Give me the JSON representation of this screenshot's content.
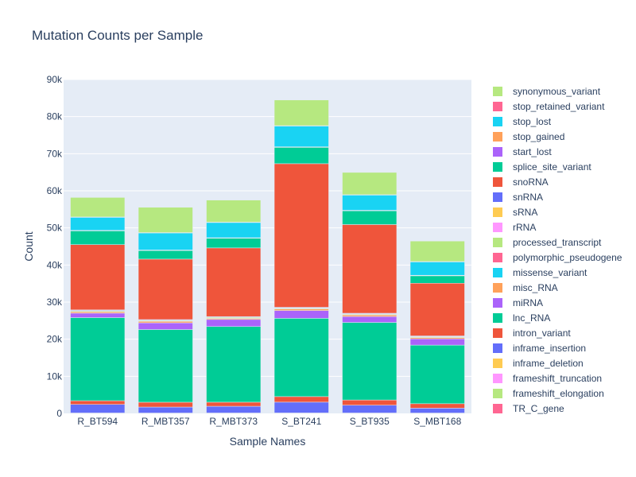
{
  "chart_data": {
    "type": "bar",
    "stacked": true,
    "title": "Mutation Counts per Sample",
    "xlabel": "Sample Names",
    "ylabel": "Count",
    "ylim": [
      0,
      90000
    ],
    "yticks": [
      0,
      10000,
      20000,
      30000,
      40000,
      50000,
      60000,
      70000,
      80000,
      90000
    ],
    "ytick_labels": [
      "0",
      "10k",
      "20k",
      "30k",
      "40k",
      "50k",
      "60k",
      "70k",
      "80k",
      "90k"
    ],
    "grid": true,
    "legend_position": "right",
    "categories": [
      "R_BT594",
      "R_MBT357",
      "R_MBT373",
      "S_BT241",
      "S_BT935",
      "S_MBT168"
    ],
    "series": [
      {
        "name": "TR_C_gene",
        "color": "#FF6692",
        "values": [
          30,
          30,
          30,
          30,
          30,
          30
        ]
      },
      {
        "name": "frameshift_elongation",
        "color": "#B6E880",
        "values": [
          20,
          20,
          20,
          20,
          20,
          20
        ]
      },
      {
        "name": "frameshift_truncation",
        "color": "#FF97FF",
        "values": [
          20,
          20,
          20,
          20,
          20,
          20
        ]
      },
      {
        "name": "inframe_deletion",
        "color": "#FECB52",
        "values": [
          50,
          40,
          50,
          60,
          50,
          40
        ]
      },
      {
        "name": "inframe_insertion",
        "color": "#636EFA",
        "values": [
          2300,
          1600,
          1800,
          2900,
          2100,
          1300
        ]
      },
      {
        "name": "intron_variant",
        "color": "#EF553B",
        "values": [
          1000,
          1300,
          1100,
          1500,
          1400,
          1200
        ]
      },
      {
        "name": "lnc_RNA",
        "color": "#00CC96",
        "values": [
          22400,
          19600,
          20400,
          21100,
          20900,
          15800
        ]
      },
      {
        "name": "miRNA",
        "color": "#AB63FA",
        "values": [
          1200,
          1800,
          1900,
          2100,
          1600,
          1700
        ]
      },
      {
        "name": "misc_RNA",
        "color": "#FFA15A",
        "values": [
          400,
          400,
          300,
          400,
          400,
          300
        ]
      },
      {
        "name": "missense_variant",
        "color": "#19D3F3",
        "values": [
          40,
          40,
          40,
          40,
          40,
          40
        ]
      },
      {
        "name": "polymorphic_pseudogene",
        "color": "#FF6692",
        "values": [
          20,
          20,
          20,
          20,
          20,
          20
        ]
      },
      {
        "name": "processed_transcript",
        "color": "#B6E880",
        "values": [
          200,
          200,
          200,
          200,
          200,
          200
        ]
      },
      {
        "name": "rRNA",
        "color": "#FF97FF",
        "values": [
          40,
          40,
          40,
          40,
          40,
          40
        ]
      },
      {
        "name": "sRNA",
        "color": "#FECB52",
        "values": [
          30,
          30,
          30,
          30,
          30,
          30
        ]
      },
      {
        "name": "snRNA",
        "color": "#636EFA",
        "values": [
          150,
          150,
          150,
          150,
          150,
          150
        ]
      },
      {
        "name": "snoRNA",
        "color": "#EF553B",
        "values": [
          17600,
          16300,
          18500,
          38700,
          23900,
          14200
        ]
      },
      {
        "name": "splice_site_variant",
        "color": "#00CC96",
        "values": [
          3700,
          2300,
          2600,
          4400,
          3700,
          2000
        ]
      },
      {
        "name": "start_lost",
        "color": "#AB63FA",
        "values": [
          50,
          50,
          50,
          50,
          50,
          50
        ]
      },
      {
        "name": "stop_gained",
        "color": "#FFA15A",
        "values": [
          100,
          100,
          100,
          100,
          100,
          100
        ]
      },
      {
        "name": "stop_lost",
        "color": "#19D3F3",
        "values": [
          3500,
          4600,
          4100,
          5600,
          4100,
          3600
        ]
      },
      {
        "name": "stop_retained_variant",
        "color": "#FF6692",
        "values": [
          100,
          100,
          100,
          100,
          100,
          100
        ]
      },
      {
        "name": "synonymous_variant",
        "color": "#B6E880",
        "values": [
          5250,
          6810,
          5950,
          6910,
          6000,
          5510
        ]
      }
    ]
  }
}
